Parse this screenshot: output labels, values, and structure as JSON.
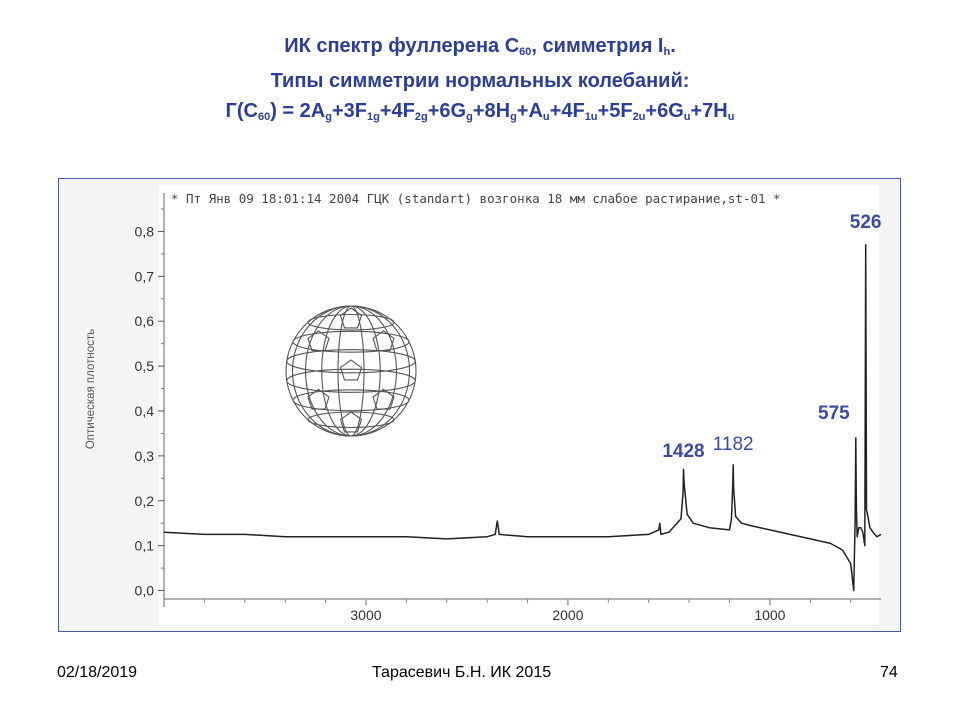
{
  "slide": {
    "title_line1_a": "ИК спектр фуллерена С",
    "title_line1_sub": "60",
    "title_line1_b": ", симметрия I",
    "title_line1_sub2": "h",
    "title_line1_c": ".",
    "title_line2": "Типы симметрии нормальных колебаний:",
    "title_line3": [
      {
        "t": "Г(С"
      },
      {
        "s": "60"
      },
      {
        "t": ") = 2A"
      },
      {
        "s": "g"
      },
      {
        "t": "+3F"
      },
      {
        "s": "1g"
      },
      {
        "t": "+4F"
      },
      {
        "s": "2g"
      },
      {
        "t": "+6G"
      },
      {
        "s": "g"
      },
      {
        "t": "+8H"
      },
      {
        "s": "g"
      },
      {
        "t": "+A"
      },
      {
        "s": "u"
      },
      {
        "t": "+4F"
      },
      {
        "s": "1u"
      },
      {
        "t": "+5F"
      },
      {
        "s": "2u"
      },
      {
        "t": "+6G"
      },
      {
        "s": "u"
      },
      {
        "t": "+7H"
      },
      {
        "s": "u"
      }
    ],
    "footer_date": "02/18/2019",
    "footer_center": "Тарасевич Б.Н.  ИК 2015",
    "footer_page": "74"
  },
  "colors": {
    "title": "#2a3e9a",
    "peak_label": "#3a4aa6",
    "trace": "#222222",
    "frame": "#4a5aa8"
  },
  "chart_data": {
    "type": "line",
    "header": "* Пт Янв 09 18:01:14 2004 ГЦК (standart) возгонка 18 мм слабое растирание,st-01 *",
    "ylabel": "Оптическая плотность",
    "xlabel": "",
    "x_reversed": true,
    "xlim": [
      4000,
      450
    ],
    "ylim": [
      -0.03,
      0.85
    ],
    "yticks": [
      "0,0",
      "0,1",
      "0,2",
      "0,3",
      "0,4",
      "0,5",
      "0,6",
      "0,7",
      "0,8"
    ],
    "xticks": [
      "3000",
      "2000",
      "1000"
    ],
    "peak_labels": [
      "1428",
      "1182",
      "575",
      "526"
    ],
    "series": [
      {
        "x": [
          4000,
          3800,
          3600,
          3400,
          3200,
          3000,
          2800,
          2600,
          2400,
          2360,
          2350,
          2340,
          2200,
          2000,
          1800,
          1600,
          1550,
          1545,
          1540,
          1500,
          1440,
          1430,
          1428,
          1425,
          1410,
          1380,
          1300,
          1200,
          1190,
          1184,
          1182,
          1180,
          1170,
          1140,
          1100,
          1000,
          900,
          800,
          700,
          640,
          600,
          585,
          578,
          575,
          572,
          568,
          560,
          550,
          540,
          530,
          526,
          522,
          515,
          505,
          490,
          470,
          450
        ],
        "y": [
          0.13,
          0.125,
          0.125,
          0.12,
          0.12,
          0.12,
          0.12,
          0.115,
          0.12,
          0.125,
          0.155,
          0.125,
          0.12,
          0.12,
          0.12,
          0.125,
          0.135,
          0.15,
          0.125,
          0.13,
          0.16,
          0.22,
          0.27,
          0.24,
          0.17,
          0.15,
          0.14,
          0.135,
          0.16,
          0.24,
          0.28,
          0.23,
          0.165,
          0.15,
          0.145,
          0.135,
          0.125,
          0.115,
          0.105,
          0.09,
          0.06,
          0.0,
          0.15,
          0.34,
          0.18,
          0.12,
          0.14,
          0.14,
          0.13,
          0.1,
          0.77,
          0.18,
          0.165,
          0.14,
          0.13,
          0.12,
          0.125
        ]
      }
    ],
    "grid": false
  }
}
